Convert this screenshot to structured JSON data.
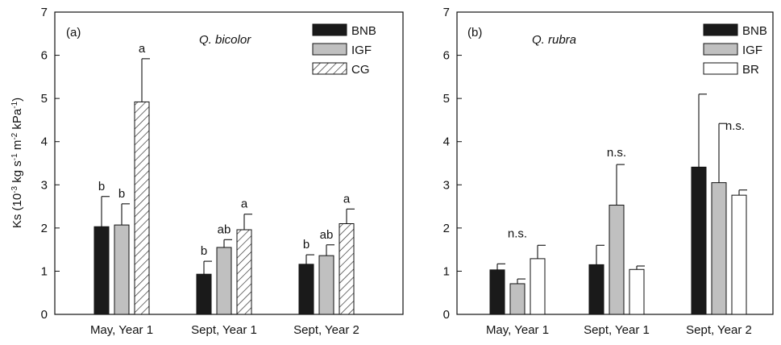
{
  "chart_data": [
    {
      "type": "bar",
      "panel_label": "(a)",
      "species": "Q. bicolor",
      "ylabel_parts": [
        "Ks (10",
        "-3",
        " kg s",
        "-1",
        " m",
        "-2",
        " kPa",
        "-1",
        ")"
      ],
      "ylim": [
        0,
        7
      ],
      "yticks": [
        "0",
        "1",
        "2",
        "3",
        "4",
        "5",
        "6",
        "7"
      ],
      "categories": [
        "May, Year 1",
        "Sept, Year 1",
        "Sept, Year 2"
      ],
      "legend_position": "top-right",
      "series": [
        {
          "name": "BNB",
          "style": "solid",
          "color": "#1a1a1a",
          "values": [
            2.03,
            0.93,
            1.16
          ],
          "errors": [
            0.7,
            0.3,
            0.22
          ],
          "sig": [
            "b",
            "b",
            "b"
          ]
        },
        {
          "name": "IGF",
          "style": "solid",
          "color": "#c0c0c0",
          "values": [
            2.07,
            1.55,
            1.36
          ],
          "errors": [
            0.49,
            0.18,
            0.25
          ],
          "sig": [
            "b",
            "ab",
            "ab"
          ]
        },
        {
          "name": "CG",
          "style": "hatch",
          "color": "#ffffff",
          "values": [
            4.92,
            1.96,
            2.1
          ],
          "errors": [
            1.0,
            0.36,
            0.34
          ],
          "sig": [
            "a",
            "a",
            "a"
          ]
        }
      ],
      "group_annotations": []
    },
    {
      "type": "bar",
      "panel_label": "(b)",
      "species": "Q. rubra",
      "ylim": [
        0,
        7
      ],
      "yticks": [
        "0",
        "1",
        "2",
        "3",
        "4",
        "5",
        "6",
        "7"
      ],
      "categories": [
        "May, Year 1",
        "Sept, Year 1",
        "Sept, Year 2"
      ],
      "legend_position": "top-right",
      "series": [
        {
          "name": "BNB",
          "style": "solid",
          "color": "#1a1a1a",
          "values": [
            1.03,
            1.15,
            3.41
          ],
          "errors": [
            0.14,
            0.45,
            1.69
          ]
        },
        {
          "name": "IGF",
          "style": "solid",
          "color": "#c0c0c0",
          "values": [
            0.71,
            2.53,
            3.05
          ],
          "errors": [
            0.11,
            0.94,
            1.37
          ]
        },
        {
          "name": "BR",
          "style": "solid",
          "color": "#ffffff",
          "values": [
            1.29,
            1.04,
            2.76
          ],
          "errors": [
            0.31,
            0.08,
            0.12
          ]
        }
      ],
      "group_annotations": [
        "n.s.",
        "n.s.",
        "n.s."
      ]
    }
  ]
}
